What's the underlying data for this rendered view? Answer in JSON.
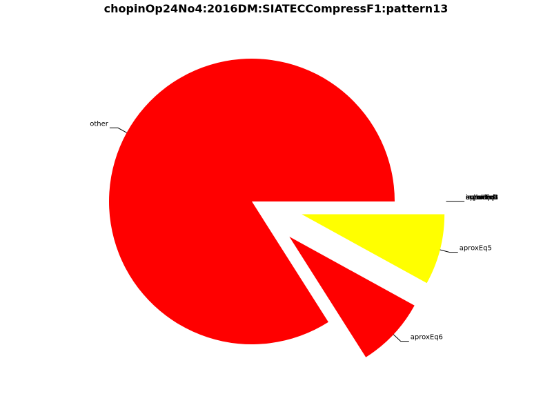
{
  "chart_data": {
    "type": "pie",
    "title": "chopinOp24No4:2016DM:SIATECCompressF1:pattern13",
    "slices": [
      {
        "label": "other",
        "value": 84.0,
        "color": "#ff0000",
        "exploded": false
      },
      {
        "label": "aproxEq6",
        "value": 8.0,
        "color": "#ff0000",
        "exploded": true
      },
      {
        "label": "aproxEq5",
        "value": 8.0,
        "color": "#ffff00",
        "exploded": true
      },
      {
        "label": "aproxEq4",
        "value": 0,
        "color": "#ff0000",
        "exploded": true
      },
      {
        "label": "aproxEq3",
        "value": 0,
        "color": "#ff0000",
        "exploded": true
      },
      {
        "label": "aproxEq2",
        "value": 0,
        "color": "#ff0000",
        "exploded": true
      },
      {
        "label": "aproxEq1",
        "value": 0,
        "color": "#ff0000",
        "exploded": true
      },
      {
        "label": "equal",
        "value": 0,
        "color": "#ff0000",
        "exploded": true
      },
      {
        "label": "subset",
        "value": 0,
        "color": "#ff0000",
        "exploded": true
      },
      {
        "label": "superset",
        "value": 0,
        "color": "#ff0000",
        "exploded": true
      },
      {
        "label": "overlap",
        "value": 0,
        "color": "#ff0000",
        "exploded": true
      },
      {
        "label": "included",
        "value": 0,
        "color": "#ff0000",
        "exploded": true
      },
      {
        "label": "inverted",
        "value": 0,
        "color": "#ff0000",
        "exploded": true
      }
    ]
  }
}
